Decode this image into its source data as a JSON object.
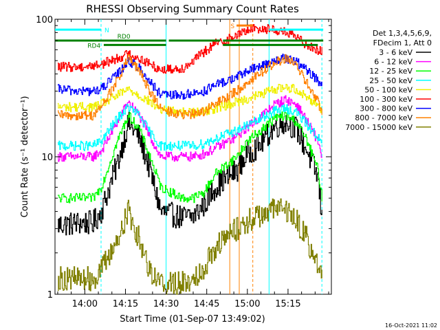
{
  "chart_data": {
    "type": "line",
    "title": "RHESSI Observing Summary Count Rates",
    "xlabel": "Start Time (01-Sep-07 13:49:02)",
    "ylabel": "Count Rate (s⁻¹ detector⁻¹)",
    "x_ticks": [
      "14:00",
      "14:15",
      "14:30",
      "14:45",
      "15:00",
      "15:15"
    ],
    "x_tick_minutes": [
      840,
      855,
      870,
      885,
      900,
      915
    ],
    "xlim": [
      829,
      931
    ],
    "y_scale": "log",
    "ylim": [
      1,
      100
    ],
    "y_tick_labels": [
      "1",
      "10",
      "100"
    ],
    "y_ticks": [
      1,
      10,
      100
    ],
    "grid": false,
    "legend_position": "top-right",
    "legend_header": [
      "Det 1,3,4,5,6,9,",
      "FDecim 1, Att 0"
    ],
    "series": [
      {
        "name": "3 - 6 keV",
        "color": "#000000",
        "x": [
          830,
          838,
          843,
          846,
          852,
          856,
          860,
          864,
          868,
          876,
          880,
          884,
          888,
          896,
          900,
          904,
          910,
          914,
          918,
          922,
          926,
          927.5
        ],
        "values": [
          3.2,
          3.3,
          3.3,
          4.0,
          9.0,
          17.5,
          14.0,
          8.0,
          4.0,
          3.6,
          3.7,
          4.5,
          6.0,
          8.0,
          10.5,
          12.0,
          16.5,
          18.0,
          16.0,
          11.0,
          7.0,
          3.5
        ]
      },
      {
        "name": "6 - 12 keV",
        "color": "#ff00ff",
        "x": [
          830,
          838,
          843,
          846,
          852,
          856,
          860,
          864,
          868,
          876,
          880,
          884,
          888,
          896,
          900,
          904,
          910,
          914,
          918,
          922,
          926,
          927.5
        ],
        "values": [
          10.0,
          10.0,
          10.0,
          11.0,
          18.0,
          25.0,
          20.0,
          14.0,
          10.0,
          10.0,
          10.0,
          10.5,
          11.5,
          14.0,
          16.5,
          19.0,
          24.0,
          26.0,
          24.0,
          18.0,
          13.0,
          10.0
        ]
      },
      {
        "name": "12 - 25 keV",
        "color": "#00ff00",
        "x": [
          830,
          838,
          843,
          846,
          852,
          856,
          860,
          864,
          868,
          876,
          880,
          884,
          888,
          896,
          900,
          904,
          910,
          914,
          918,
          922,
          926,
          927.5
        ],
        "values": [
          5.0,
          5.0,
          5.0,
          6.0,
          13.0,
          20.0,
          16.0,
          10.0,
          6.0,
          5.0,
          5.0,
          5.5,
          7.5,
          10.0,
          13.0,
          15.0,
          19.0,
          20.0,
          18.0,
          13.0,
          8.0,
          5.0
        ]
      },
      {
        "name": "25 - 50 keV",
        "color": "#00ffff",
        "x": [
          830,
          838,
          843,
          846,
          852,
          856,
          860,
          864,
          868,
          876,
          880,
          884,
          888,
          896,
          900,
          904,
          910,
          914,
          918,
          922,
          926,
          927.5
        ],
        "values": [
          12.0,
          12.0,
          12.0,
          13.0,
          19.0,
          23.0,
          20.0,
          15.0,
          12.0,
          12.0,
          12.0,
          12.5,
          13.5,
          15.5,
          17.0,
          18.5,
          21.5,
          22.5,
          21.0,
          17.0,
          14.0,
          12.0
        ]
      },
      {
        "name": "50 - 100 keV",
        "color": "#f0f000",
        "x": [
          830,
          838,
          843,
          846,
          852,
          856,
          860,
          864,
          868,
          876,
          880,
          884,
          888,
          896,
          900,
          904,
          910,
          914,
          918,
          922,
          926,
          927.5
        ],
        "values": [
          23.0,
          23.0,
          23.0,
          24.0,
          28.0,
          31.0,
          28.0,
          25.0,
          22.0,
          21.0,
          21.0,
          21.5,
          22.5,
          25.0,
          26.5,
          28.0,
          31.0,
          32.0,
          31.0,
          27.0,
          24.0,
          22.0
        ]
      },
      {
        "name": "100 - 300 keV",
        "color": "#ff0000",
        "x": [
          830,
          838,
          843,
          846,
          852,
          856,
          860,
          864,
          868,
          876,
          880,
          884,
          888,
          896,
          900,
          904,
          910,
          914,
          918,
          922,
          926,
          927.5
        ],
        "values": [
          45.0,
          45.0,
          46.0,
          47.0,
          52.0,
          56.0,
          52.0,
          47.0,
          43.0,
          44.0,
          50.0,
          58.0,
          66.0,
          76.0,
          84.0,
          86.0,
          84.0,
          80.0,
          74.0,
          65.0,
          60.0,
          58.0
        ]
      },
      {
        "name": "300 - 800 keV",
        "color": "#0000ff",
        "x": [
          830,
          838,
          843,
          846,
          852,
          856,
          860,
          864,
          868,
          876,
          880,
          884,
          888,
          896,
          900,
          904,
          910,
          914,
          918,
          922,
          926,
          927.5
        ],
        "values": [
          31.0,
          30.0,
          30.0,
          31.0,
          40.0,
          50.0,
          44.0,
          35.0,
          28.0,
          28.0,
          29.0,
          30.0,
          33.0,
          38.0,
          42.0,
          45.0,
          50.0,
          52.0,
          49.0,
          42.0,
          36.0,
          32.0
        ]
      },
      {
        "name": "800 - 7000 keV",
        "color": "#ff8000",
        "x": [
          830,
          838,
          843,
          846,
          852,
          856,
          860,
          864,
          868,
          876,
          880,
          884,
          888,
          896,
          900,
          904,
          910,
          914,
          918,
          922,
          926,
          927.5
        ],
        "values": [
          20.0,
          20.0,
          20.0,
          23.0,
          36.0,
          52.0,
          42.0,
          30.0,
          22.0,
          20.0,
          20.5,
          21.5,
          24.0,
          30.0,
          35.0,
          40.0,
          48.0,
          52.0,
          46.0,
          34.0,
          25.0,
          21.0
        ]
      },
      {
        "name": "7000 - 15000 keV",
        "color": "#808000",
        "x": [
          830,
          838,
          843,
          846,
          852,
          856,
          860,
          864,
          868,
          876,
          880,
          884,
          888,
          896,
          900,
          904,
          910,
          914,
          918,
          922,
          926,
          927.5
        ],
        "values": [
          1.3,
          1.3,
          1.3,
          1.5,
          2.5,
          4.0,
          2.5,
          1.5,
          1.2,
          1.2,
          1.3,
          1.6,
          2.2,
          3.0,
          3.4,
          3.7,
          4.2,
          4.1,
          3.5,
          2.5,
          1.6,
          1.3
        ]
      }
    ],
    "flag_labels": [
      "N",
      "RD0",
      "RD4",
      "S"
    ],
    "flag_bars": [
      {
        "label": "N",
        "color": "#00ffff",
        "y": 84,
        "intervals": [
          [
            829,
            846
          ],
          [
            908,
            928
          ]
        ]
      },
      {
        "label": "RD0",
        "color": "#008000",
        "y": 70,
        "intervals": [
          [
            829,
            870
          ],
          [
            871,
            890
          ],
          [
            891,
            928
          ]
        ]
      },
      {
        "label": "RD4",
        "color": "#008000",
        "y": 65,
        "intervals": [
          [
            847,
            870
          ],
          [
            891,
            926
          ]
        ]
      },
      {
        "label": "S",
        "color": "#ff8000",
        "y": 90,
        "intervals": [
          [
            896,
            902
          ]
        ]
      }
    ],
    "vertical_lines": [
      {
        "x": 846,
        "color": "#00ffff",
        "style": "dashed"
      },
      {
        "x": 870,
        "color": "#00ffff",
        "style": "solid"
      },
      {
        "x": 893.5,
        "color": "#ff8000",
        "style": "solid"
      },
      {
        "x": 897,
        "color": "#ff8000",
        "style": "solid"
      },
      {
        "x": 902,
        "color": "#ff8000",
        "style": "dashed"
      },
      {
        "x": 908,
        "color": "#00ffff",
        "style": "solid"
      },
      {
        "x": 927.5,
        "color": "#00ffff",
        "style": "dashed"
      }
    ],
    "footer_date": "16-Oct-2021 11:02"
  }
}
